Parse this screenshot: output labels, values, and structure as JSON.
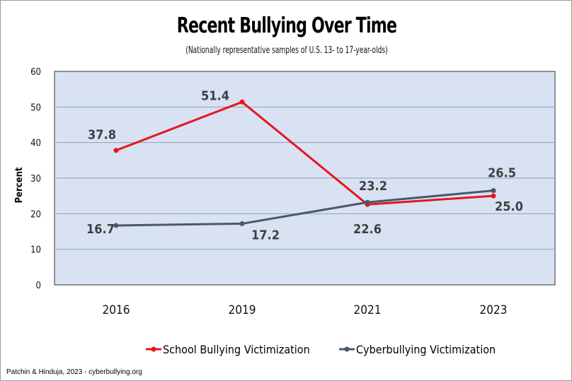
{
  "chart_data": {
    "type": "line",
    "title": "Recent Bullying Over Time",
    "subtitle": "(Nationally representative samples of U.S. 13- to 17-year-olds)",
    "xlabel": "",
    "ylabel": "Percent",
    "categories": [
      "2016",
      "2019",
      "2021",
      "2023"
    ],
    "ylim": [
      0,
      60
    ],
    "yticks": [
      "0",
      "10",
      "20",
      "30",
      "40",
      "50",
      "60"
    ],
    "grid": true,
    "legend_position": "bottom",
    "series": [
      {
        "name": "School Bullying Victimization",
        "color": "#e8141b",
        "values": [
          37.8,
          51.4,
          22.6,
          25.0
        ],
        "labels": [
          "37.8",
          "51.4",
          "22.6",
          "25.0"
        ]
      },
      {
        "name": "Cyberbullying Victimization",
        "color": "#4a5670",
        "values": [
          16.7,
          17.2,
          23.2,
          26.5
        ],
        "labels": [
          "16.7",
          "17.2",
          "23.2",
          "26.5"
        ]
      }
    ],
    "source": "Patchin & Hinduja, 2023 - cyberbullying.org"
  },
  "colors": {
    "plot_background": "#d9e2f3",
    "gridline": "#8f9fb8",
    "axis": "#333333"
  }
}
